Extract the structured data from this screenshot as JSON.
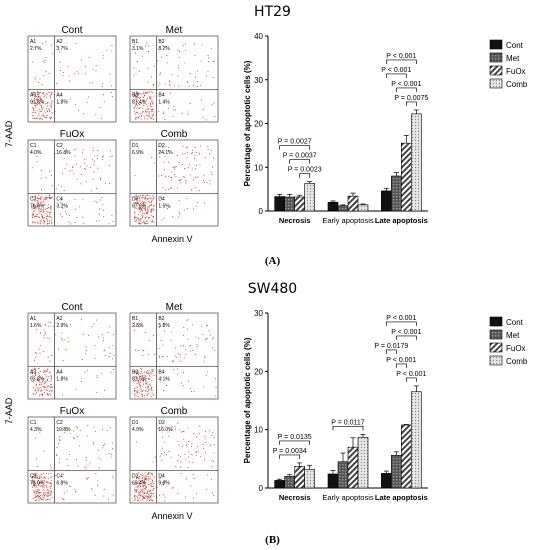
{
  "panels": [
    {
      "title": "HT29",
      "label": "(A)",
      "flow": {
        "ylabel": "7-AAD",
        "xlabel": "Annexin V",
        "quadrants": [
          {
            "title": "Cont",
            "tl_code": "A1",
            "tl_pct": "2.7%",
            "tr_code": "A2",
            "tr_pct": "3.7%",
            "bl_code": "A3",
            "bl_pct": "91.8%",
            "br_code": "A4",
            "br_pct": "1.8%"
          },
          {
            "title": "Met",
            "tl_code": "B1",
            "tl_pct": "3.1%",
            "tr_code": "B2",
            "tr_pct": "8.2%",
            "bl_code": "B3",
            "bl_pct": "87.4%",
            "br_code": "B4",
            "br_pct": "1.4%"
          },
          {
            "title": "FuOx",
            "tl_code": "C1",
            "tl_pct": "4.0%",
            "tr_code": "C2",
            "tr_pct": "16.8%",
            "bl_code": "C3",
            "bl_pct": "76.0%",
            "br_code": "C4",
            "br_pct": "3.2%"
          },
          {
            "title": "Comb",
            "tl_code": "D1",
            "tl_pct": "6.9%",
            "tr_code": "D2",
            "tr_pct": "24.1%",
            "bl_code": "D3",
            "bl_pct": "67.8%",
            "br_code": "D4",
            "br_pct": "1.5%"
          }
        ]
      }
    },
    {
      "title": "SW480",
      "label": "(B)",
      "flow": {
        "ylabel": "7-AAD",
        "xlabel": "Annexin V",
        "quadrants": [
          {
            "title": "Cont",
            "tl_code": "A1",
            "tl_pct": "1.6%",
            "tr_code": "A2",
            "tr_pct": "2.9%",
            "bl_code": "A3",
            "bl_pct": "93.8%",
            "br_code": "A4",
            "br_pct": "1.8%"
          },
          {
            "title": "Met",
            "tl_code": "B1",
            "tl_pct": "2.8%",
            "tr_code": "B2",
            "tr_pct": "5.8%",
            "bl_code": "B3",
            "bl_pct": "87.5%",
            "br_code": "B4",
            "br_pct": "4.1%"
          },
          {
            "title": "FuOx",
            "tl_code": "C1",
            "tl_pct": "4.3%",
            "tr_code": "C2",
            "tr_pct": "10.8%",
            "bl_code": "C3",
            "bl_pct": "78.0%",
            "br_code": "C4",
            "br_pct": "6.8%"
          },
          {
            "title": "Comb",
            "tl_code": "D1",
            "tl_pct": "4.9%",
            "tr_code": "D2",
            "tr_pct": "16.0%",
            "bl_code": "D3",
            "bl_pct": "69.4%",
            "br_code": "D4",
            "br_pct": "9.8%"
          }
        ]
      }
    }
  ],
  "chart_data": [
    {
      "type": "bar",
      "ylabel": "Percentage of apoptotic cells (%)",
      "xlabel": "",
      "ylim": [
        0,
        40
      ],
      "yticks": [
        0,
        10,
        20,
        30,
        40
      ],
      "categories": [
        "Necrosis",
        "Early apoptosis",
        "Late apoptosis"
      ],
      "series": [
        {
          "name": "Cont",
          "values": [
            3.3,
            2.0,
            4.6
          ],
          "errors": [
            0.5,
            0.3,
            0.6
          ]
        },
        {
          "name": "Met",
          "values": [
            3.2,
            1.2,
            8.0
          ],
          "errors": [
            0.6,
            0.2,
            0.8
          ]
        },
        {
          "name": "FuOx",
          "values": [
            3.2,
            3.4,
            15.5
          ],
          "errors": [
            0.4,
            0.7,
            1.8
          ]
        },
        {
          "name": "Comb",
          "values": [
            6.3,
            1.4,
            22.2
          ],
          "errors": [
            0.4,
            0.2,
            0.9
          ]
        }
      ],
      "annotations": [
        {
          "text": "P = 0.0027",
          "category": 0,
          "from": 0,
          "to": 3
        },
        {
          "text": "P = 0.0037",
          "category": 0,
          "from": 1,
          "to": 3
        },
        {
          "text": "P = 0.0023",
          "category": 0,
          "from": 2,
          "to": 3
        },
        {
          "text": "P < 0.001",
          "category": 2,
          "from": 0,
          "to": 3
        },
        {
          "text": "P < 0.001",
          "category": 2,
          "from": 1,
          "to": 3
        },
        {
          "text": "P = 0.0075",
          "category": 2,
          "from": 2,
          "to": 3
        },
        {
          "text": "P < 0.001",
          "category": 2,
          "from": 0,
          "to": 2
        }
      ],
      "legend": "top-right"
    },
    {
      "type": "bar",
      "ylabel": "Percentage of apoptotic cells (%)",
      "xlabel": "",
      "ylim": [
        0,
        30
      ],
      "yticks": [
        0,
        10,
        20,
        30
      ],
      "categories": [
        "Necrosis",
        "Early apoptosis",
        "Late apoptosis"
      ],
      "series": [
        {
          "name": "Cont",
          "values": [
            1.3,
            2.4,
            2.5
          ],
          "errors": [
            0.2,
            0.6,
            0.4
          ]
        },
        {
          "name": "Met",
          "values": [
            2.0,
            4.5,
            5.6
          ],
          "errors": [
            0.3,
            1.5,
            0.6
          ]
        },
        {
          "name": "FuOx",
          "values": [
            3.7,
            7.0,
            10.8
          ],
          "errors": [
            0.6,
            1.6,
            0.1
          ]
        },
        {
          "name": "Comb",
          "values": [
            3.2,
            8.7,
            16.5
          ],
          "errors": [
            0.7,
            0.5,
            1.0
          ]
        }
      ],
      "annotations": [
        {
          "text": "P = 0.0135",
          "category": 0,
          "from": 0,
          "to": 3
        },
        {
          "text": "P = 0.0034",
          "category": 0,
          "from": 0,
          "to": 2
        },
        {
          "text": "P = 0.0117",
          "category": 1,
          "from": 0,
          "to": 3
        },
        {
          "text": "P < 0.001",
          "category": 2,
          "from": 0,
          "to": 3
        },
        {
          "text": "P < 0.001",
          "category": 2,
          "from": 1,
          "to": 3
        },
        {
          "text": "P < 0.001",
          "category": 2,
          "from": 2,
          "to": 3
        },
        {
          "text": "P < 0.001",
          "category": 2,
          "from": 1,
          "to": 2
        },
        {
          "text": "P = 0.0179",
          "category": 2,
          "from": 0,
          "to": 1
        }
      ],
      "legend": "top-right"
    }
  ],
  "colors": {
    "cont": "#111111",
    "met": "#555555",
    "fuox": "#bbbbbb",
    "comb": "#d8d8d8",
    "dots": "#d33a2c",
    "grid": "#333333"
  }
}
